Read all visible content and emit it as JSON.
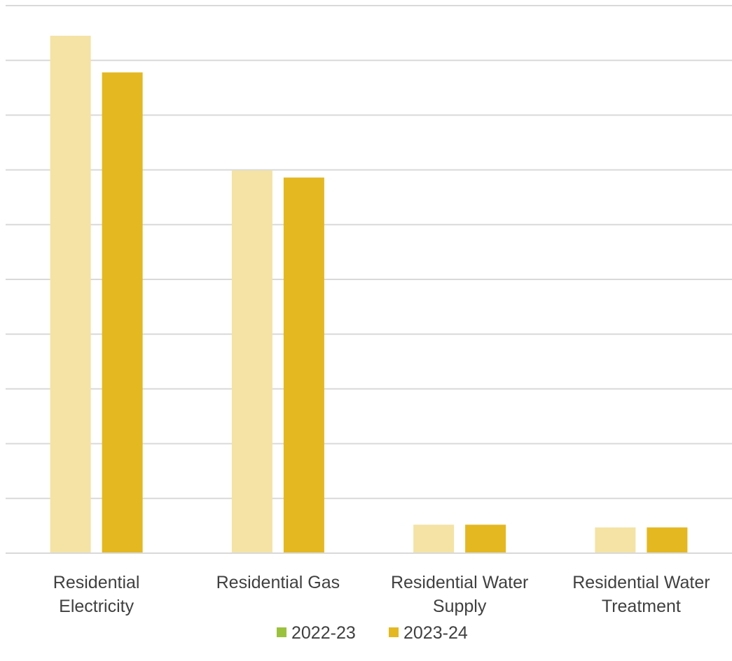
{
  "chart_data": {
    "type": "bar",
    "categories": [
      [
        "Residential",
        "Electricity"
      ],
      [
        "Residential Gas"
      ],
      [
        "Residential Water",
        "Supply"
      ],
      [
        "Residential Water",
        "Treatment"
      ]
    ],
    "series": [
      {
        "name": "2022-23",
        "values": [
          9.45,
          6.99,
          0.52,
          0.47
        ],
        "color": "#f4e3a5",
        "legend_color": "#9bc23c"
      },
      {
        "name": "2023-24",
        "values": [
          8.78,
          6.86,
          0.52,
          0.47
        ],
        "color": "#e4b821",
        "legend_color": "#e4b821"
      }
    ],
    "ylim": [
      0,
      10
    ],
    "grid": true,
    "legend": "bottom",
    "title": "",
    "xlabel": "",
    "ylabel": ""
  }
}
